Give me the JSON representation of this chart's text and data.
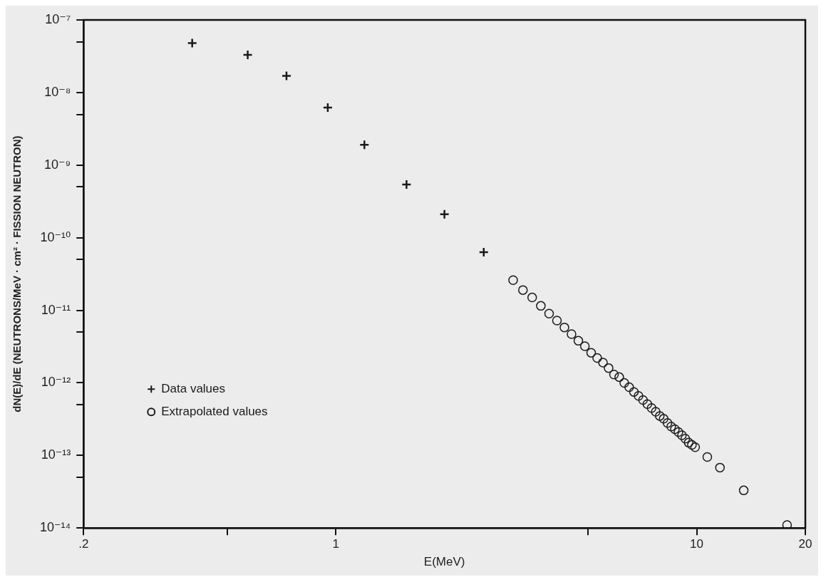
{
  "chart_data": {
    "type": "scatter",
    "xlabel": "E(MeV)",
    "ylabel": "dN(E)/dE (NEUTRONS/MeV · cm² · FISSION NEUTRON)",
    "log": "xy",
    "grid": false,
    "legend": "bottom left",
    "xlim": [
      0.2,
      20
    ],
    "xticks": [
      {
        "value": 0.2,
        "label": ".2"
      },
      {
        "value": 0.5,
        "label": null
      },
      1,
      {
        "value": 5,
        "label": null
      },
      10,
      20
    ],
    "ylim": [
      1e-14,
      1e-07
    ],
    "yticks": [
      {
        "value": 1e-14,
        "label": "10⁻¹⁴"
      },
      {
        "value": 5e-14,
        "label": null
      },
      {
        "value": 1e-13,
        "label": "10⁻¹³"
      },
      {
        "value": 5e-13,
        "label": null
      },
      {
        "value": 1e-12,
        "label": "10⁻¹²"
      },
      {
        "value": 5e-12,
        "label": null
      },
      {
        "value": 1e-11,
        "label": "10⁻¹¹"
      },
      {
        "value": 5e-11,
        "label": null
      },
      {
        "value": 1e-10,
        "label": "10⁻¹⁰"
      },
      {
        "value": 5e-10,
        "label": null
      },
      {
        "value": 1e-09,
        "label": "10⁻⁹"
      },
      {
        "value": 5e-09,
        "label": null
      },
      {
        "value": 1e-08,
        "label": "10⁻⁸"
      },
      {
        "value": 5e-08,
        "label": null
      },
      {
        "value": 1e-07,
        "label": "10⁻⁷"
      }
    ],
    "series": [
      {
        "name": "Data values",
        "color": "#1a1a1a",
        "marker": "cross",
        "x": [
          0.4,
          0.57,
          0.73,
          0.95,
          1.2,
          1.57,
          2.0,
          2.57
        ],
        "values": [
          4.8e-08,
          3.3e-08,
          1.7e-08,
          6.2e-09,
          1.9e-09,
          5.4e-10,
          2.1e-10,
          6.3e-11
        ]
      },
      {
        "name": "Extrapolated values",
        "color": "#1a1a1a",
        "marker": "circle",
        "x": [
          3.1,
          3.3,
          3.5,
          3.7,
          3.9,
          4.1,
          4.3,
          4.5,
          4.7,
          4.9,
          5.1,
          5.3,
          5.5,
          5.7,
          5.9,
          6.1,
          6.3,
          6.5,
          6.7,
          6.9,
          7.1,
          7.3,
          7.5,
          7.7,
          7.9,
          8.1,
          8.3,
          8.5,
          8.7,
          8.9,
          9.1,
          9.3,
          9.5,
          9.7,
          9.9,
          10.7,
          11.6,
          13.5,
          17.8
        ],
        "values": [
          2.6e-11,
          1.9e-11,
          1.5e-11,
          1.15e-11,
          9e-12,
          7.2e-12,
          5.8e-12,
          4.7e-12,
          3.8e-12,
          3.2e-12,
          2.6e-12,
          2.2e-12,
          1.9e-12,
          1.6e-12,
          1.3e-12,
          1.2e-12,
          1e-12,
          8.7e-13,
          7.5e-13,
          6.6e-13,
          5.8e-13,
          5.1e-13,
          4.5e-13,
          4e-13,
          3.5e-13,
          3.2e-13,
          2.8e-13,
          2.5e-13,
          2.3e-13,
          2.1e-13,
          1.9e-13,
          1.7e-13,
          1.5e-13,
          1.4e-13,
          1.3e-13,
          9.5e-14,
          6.8e-14,
          3.3e-14,
          1.1e-14
        ]
      }
    ]
  }
}
